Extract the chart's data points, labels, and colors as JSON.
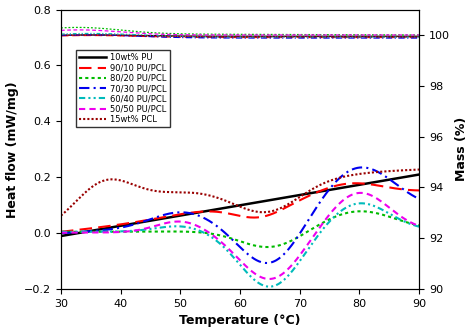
{
  "xlabel": "Temperature (°C)",
  "ylabel_left": "Heat flow (mW/mg)",
  "ylabel_right": "Mass (%)",
  "xlim": [
    30,
    90
  ],
  "ylim_left": [
    -0.2,
    0.8
  ],
  "ylim_right": [
    90,
    101
  ],
  "xticks": [
    30,
    40,
    50,
    60,
    70,
    80,
    90
  ],
  "yticks_left": [
    -0.2,
    0.0,
    0.2,
    0.4,
    0.6,
    0.8
  ],
  "yticks_right": [
    90,
    92,
    94,
    96,
    98,
    100
  ],
  "series": [
    {
      "label": "10wt% PU",
      "color": "#000000",
      "linestyle": "solid",
      "lw": 1.8
    },
    {
      "label": "90/10 PU/PCL",
      "color": "#ff0000",
      "linestyle": "dashed",
      "lw": 1.5
    },
    {
      "label": "80/20 PU/PCL",
      "color": "#00bb00",
      "linestyle": "dotted",
      "lw": 1.5
    },
    {
      "label": "70/30 PU/PCL",
      "color": "#0000ee",
      "linestyle": "dashdot",
      "lw": 1.5
    },
    {
      "label": "60/40 PU/PCL",
      "color": "#00bbbb",
      "linestyle": "dashdot",
      "lw": 1.5
    },
    {
      "label": "50/50 PU/PCL",
      "color": "#ee00ee",
      "linestyle": "dashed",
      "lw": 1.5
    },
    {
      "label": "15wt% PCL",
      "color": "#990000",
      "linestyle": "dotted",
      "lw": 1.5
    }
  ]
}
